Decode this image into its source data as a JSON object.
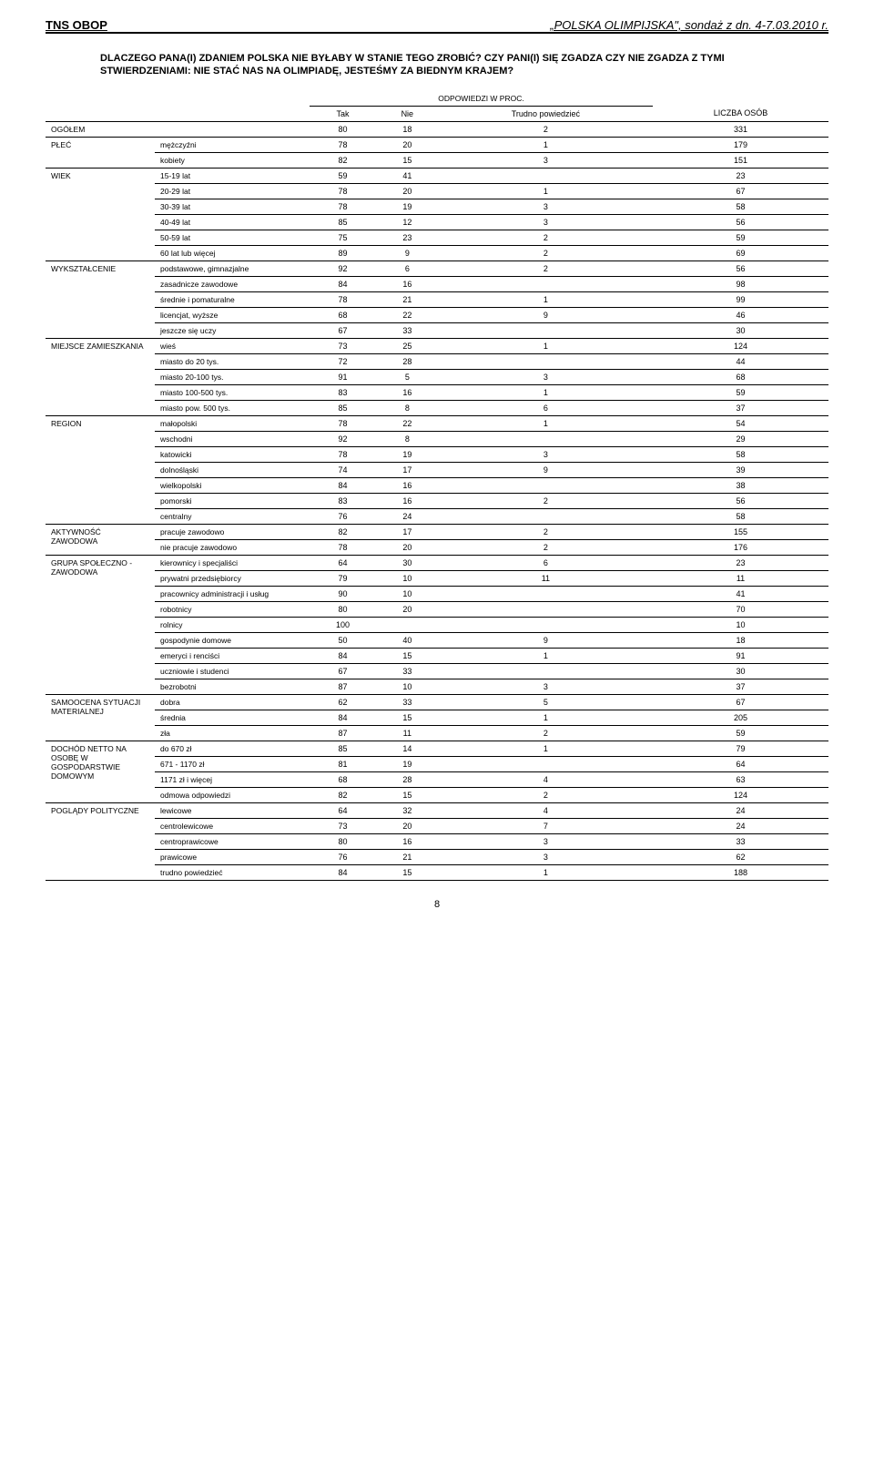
{
  "headerLeft": "TNS OBOP",
  "headerRight": "„POLSKA OLIMPIJSKA\", sondaż z dn. 4-7.03.2010 r.",
  "question": "DLACZEGO PANA(I) ZDANIEM POLSKA NIE BYŁABY W STANIE TEGO ZROBIĆ? CZY PANI(I) SIĘ ZGADZA CZY NIE ZGADZA Z TYMI STWIERDZENIAMI: NIE STAĆ NAS NA OLIMPIADĘ, JESTEŚMY ZA BIEDNYM KRAJEM?",
  "subhead": "ODPOWIEDZI W PROC.",
  "cols": [
    "Tak",
    "Nie",
    "Trudno powiedzieć",
    "LICZBA OSÓB"
  ],
  "ogolLabel": "OGÓŁEM",
  "ogolVals": [
    "80",
    "18",
    "2",
    "331"
  ],
  "groups": [
    {
      "name": "PŁEĆ",
      "rows": [
        {
          "label": "mężczyźni",
          "v": [
            "78",
            "20",
            "1",
            "179"
          ]
        },
        {
          "label": "kobiety",
          "v": [
            "82",
            "15",
            "3",
            "151"
          ]
        }
      ]
    },
    {
      "name": "WIEK",
      "rows": [
        {
          "label": "15-19 lat",
          "v": [
            "59",
            "41",
            "",
            "23"
          ]
        },
        {
          "label": "20-29 lat",
          "v": [
            "78",
            "20",
            "1",
            "67"
          ]
        },
        {
          "label": "30-39 lat",
          "v": [
            "78",
            "19",
            "3",
            "58"
          ]
        },
        {
          "label": "40-49 lat",
          "v": [
            "85",
            "12",
            "3",
            "56"
          ]
        },
        {
          "label": "50-59 lat",
          "v": [
            "75",
            "23",
            "2",
            "59"
          ]
        },
        {
          "label": "60 lat lub więcej",
          "v": [
            "89",
            "9",
            "2",
            "69"
          ]
        }
      ]
    },
    {
      "name": "WYKSZTAŁCENIE",
      "rows": [
        {
          "label": "podstawowe, gimnazjalne",
          "v": [
            "92",
            "6",
            "2",
            "56"
          ]
        },
        {
          "label": "zasadnicze zawodowe",
          "v": [
            "84",
            "16",
            "",
            "98"
          ]
        },
        {
          "label": "średnie i pomaturalne",
          "v": [
            "78",
            "21",
            "1",
            "99"
          ]
        },
        {
          "label": "licencjat, wyższe",
          "v": [
            "68",
            "22",
            "9",
            "46"
          ]
        },
        {
          "label": "jeszcze się uczy",
          "v": [
            "67",
            "33",
            "",
            "30"
          ]
        }
      ]
    },
    {
      "name": "MIEJSCE ZAMIESZKANIA",
      "rows": [
        {
          "label": "wieś",
          "v": [
            "73",
            "25",
            "1",
            "124"
          ]
        },
        {
          "label": "miasto do 20 tys.",
          "v": [
            "72",
            "28",
            "",
            "44"
          ]
        },
        {
          "label": "miasto 20-100 tys.",
          "v": [
            "91",
            "5",
            "3",
            "68"
          ]
        },
        {
          "label": "miasto 100-500 tys.",
          "v": [
            "83",
            "16",
            "1",
            "59"
          ]
        },
        {
          "label": "miasto pow. 500 tys.",
          "v": [
            "85",
            "8",
            "6",
            "37"
          ]
        }
      ]
    },
    {
      "name": "REGION",
      "rows": [
        {
          "label": "małopolski",
          "v": [
            "78",
            "22",
            "1",
            "54"
          ]
        },
        {
          "label": "wschodni",
          "v": [
            "92",
            "8",
            "",
            "29"
          ]
        },
        {
          "label": "katowicki",
          "v": [
            "78",
            "19",
            "3",
            "58"
          ]
        },
        {
          "label": "dolnośląski",
          "v": [
            "74",
            "17",
            "9",
            "39"
          ]
        },
        {
          "label": "wielkopolski",
          "v": [
            "84",
            "16",
            "",
            "38"
          ]
        },
        {
          "label": "pomorski",
          "v": [
            "83",
            "16",
            "2",
            "56"
          ]
        },
        {
          "label": "centralny",
          "v": [
            "76",
            "24",
            "",
            "58"
          ]
        }
      ]
    },
    {
      "name": "AKTYWNOŚĆ ZAWODOWA",
      "rows": [
        {
          "label": "pracuje zawodowo",
          "v": [
            "82",
            "17",
            "2",
            "155"
          ]
        },
        {
          "label": "nie pracuje zawodowo",
          "v": [
            "78",
            "20",
            "2",
            "176"
          ]
        }
      ]
    },
    {
      "name": "GRUPA SPOŁECZNO - ZAWODOWA",
      "rows": [
        {
          "label": "kierownicy i specjaliści",
          "v": [
            "64",
            "30",
            "6",
            "23"
          ]
        },
        {
          "label": "prywatni przedsiębiorcy",
          "v": [
            "79",
            "10",
            "11",
            "11"
          ]
        },
        {
          "label": "pracownicy administracji i usług",
          "v": [
            "90",
            "10",
            "",
            "41"
          ]
        },
        {
          "label": "robotnicy",
          "v": [
            "80",
            "20",
            "",
            "70"
          ]
        },
        {
          "label": "rolnicy",
          "v": [
            "100",
            "",
            "",
            "10"
          ]
        },
        {
          "label": "gospodynie domowe",
          "v": [
            "50",
            "40",
            "9",
            "18"
          ]
        },
        {
          "label": "emeryci i renciści",
          "v": [
            "84",
            "15",
            "1",
            "91"
          ]
        },
        {
          "label": "uczniowie i studenci",
          "v": [
            "67",
            "33",
            "",
            "30"
          ]
        },
        {
          "label": "bezrobotni",
          "v": [
            "87",
            "10",
            "3",
            "37"
          ]
        }
      ]
    },
    {
      "name": "SAMOOCENA SYTUACJI MATERIALNEJ",
      "rows": [
        {
          "label": "dobra",
          "v": [
            "62",
            "33",
            "5",
            "67"
          ]
        },
        {
          "label": "średnia",
          "v": [
            "84",
            "15",
            "1",
            "205"
          ]
        },
        {
          "label": "zła",
          "v": [
            "87",
            "11",
            "2",
            "59"
          ]
        }
      ]
    },
    {
      "name": "DOCHÓD NETTO NA OSOBĘ W GOSPODARSTWIE DOMOWYM",
      "rows": [
        {
          "label": "do 670 zł",
          "v": [
            "85",
            "14",
            "1",
            "79"
          ]
        },
        {
          "label": "671 - 1170 zł",
          "v": [
            "81",
            "19",
            "",
            "64"
          ]
        },
        {
          "label": "1171 zł i więcej",
          "v": [
            "68",
            "28",
            "4",
            "63"
          ]
        },
        {
          "label": "odmowa odpowiedzi",
          "v": [
            "82",
            "15",
            "2",
            "124"
          ]
        }
      ]
    },
    {
      "name": "POGLĄDY POLITYCZNE",
      "rows": [
        {
          "label": "lewicowe",
          "v": [
            "64",
            "32",
            "4",
            "24"
          ]
        },
        {
          "label": "centrolewicowe",
          "v": [
            "73",
            "20",
            "7",
            "24"
          ]
        },
        {
          "label": "centroprawicowe",
          "v": [
            "80",
            "16",
            "3",
            "33"
          ]
        },
        {
          "label": "prawicowe",
          "v": [
            "76",
            "21",
            "3",
            "62"
          ]
        },
        {
          "label": "trudno powiedzieć",
          "v": [
            "84",
            "15",
            "1",
            "188"
          ]
        }
      ]
    }
  ],
  "pageNumber": "8",
  "style": {
    "bg": "#ffffff",
    "text": "#000000",
    "border": "#000000",
    "fontBody": 9,
    "fontHeader": 13,
    "fontQuestion": 11
  }
}
